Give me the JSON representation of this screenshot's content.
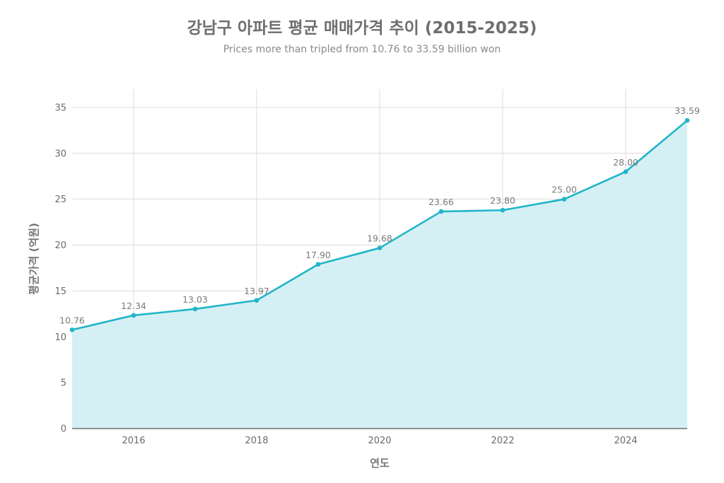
{
  "title": "강남구 아파트 평균 매매가격 추이 (2015-2025)",
  "subtitle": "Prices more than tripled from 10.76 to 33.59 billion won",
  "colors": {
    "line": "#1fb5c8",
    "fill": "#d3eff4",
    "grid": "#dcdcdc",
    "axis": "#555555"
  },
  "chart_data": {
    "type": "area",
    "title": "강남구 아파트 평균 매매가격 추이 (2015-2025)",
    "subtitle": "Prices more than tripled from 10.76 to 33.59 billion won",
    "xlabel": "연도",
    "ylabel": "평균가격 (억원)",
    "x": [
      2015,
      2016,
      2017,
      2018,
      2019,
      2020,
      2021,
      2022,
      2023,
      2024,
      2025
    ],
    "series": [
      {
        "values": [
          10.76,
          12.34,
          13.03,
          13.97,
          17.9,
          19.68,
          23.66,
          23.8,
          25.0,
          28.0,
          33.59
        ]
      }
    ],
    "data_labels": [
      "10.76",
      "12.34",
      "13.03",
      "13.97",
      "17.90",
      "19.68",
      "23.66",
      "23.80",
      "25.00",
      "28.00",
      "33.59"
    ],
    "xlim": [
      2015,
      2025
    ],
    "ylim": [
      0,
      37
    ],
    "xticks": [
      2016,
      2018,
      2020,
      2022,
      2024
    ],
    "yticks": [
      0,
      5,
      10,
      15,
      20,
      25,
      30,
      35
    ],
    "grid": true,
    "legend": "none"
  }
}
